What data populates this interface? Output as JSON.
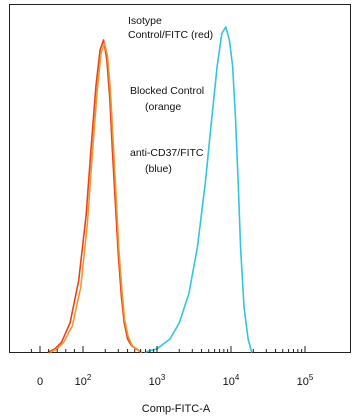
{
  "chart_data": {
    "type": "line",
    "title": "",
    "xlabel": "Comp-FITC-A",
    "ylabel": "",
    "x_scale": "biexponential",
    "x_ticks": [
      {
        "value": 0,
        "base": "0",
        "exp": ""
      },
      {
        "value": 100,
        "base": "10",
        "exp": "2"
      },
      {
        "value": 1000,
        "base": "10",
        "exp": "3"
      },
      {
        "value": 10000,
        "base": "10",
        "exp": "4"
      },
      {
        "value": 100000,
        "base": "10",
        "exp": "5"
      }
    ],
    "xlim": [
      -30,
      120000
    ],
    "ylim": [
      0,
      100
    ],
    "grid": false,
    "legend_placement": "top-center",
    "legend_lines": [
      "Isotype",
      "Control/FITC  (red)",
      "Blocked Control",
      "(orange",
      "anti-CD37/FITC",
      "(blue)"
    ],
    "series": [
      {
        "name": "Isotype Control/FITC (red)",
        "color": "#e8421e",
        "x": [
          20,
          35,
          50,
          70,
          90,
          110,
          130,
          150,
          170,
          190,
          210,
          230,
          250,
          275,
          300,
          330,
          360,
          400,
          450,
          520,
          600
        ],
        "y": [
          0,
          1,
          3,
          9,
          22,
          42,
          64,
          82,
          93,
          96,
          90,
          78,
          62,
          45,
          30,
          17,
          9,
          4,
          2,
          1,
          0
        ]
      },
      {
        "name": "Blocked Control (orange",
        "color": "#f0982e",
        "x": [
          25,
          40,
          55,
          75,
          95,
          115,
          135,
          155,
          175,
          195,
          215,
          235,
          255,
          280,
          305,
          335,
          365,
          405,
          460,
          530,
          610
        ],
        "y": [
          0,
          1,
          3,
          8,
          20,
          40,
          62,
          80,
          92,
          95,
          91,
          80,
          65,
          48,
          32,
          19,
          10,
          5,
          2,
          1,
          0
        ]
      },
      {
        "name": "anti-CD37/FITC (blue)",
        "color": "#33c6d8",
        "x": [
          700,
          1000,
          1500,
          2000,
          2700,
          3500,
          4500,
          5500,
          6500,
          7500,
          8500,
          9500,
          10500,
          11500,
          12500,
          13500,
          15000,
          17000,
          19000
        ],
        "y": [
          0,
          1,
          4,
          9,
          18,
          32,
          52,
          72,
          88,
          98,
          100,
          96,
          88,
          72,
          52,
          32,
          14,
          4,
          0
        ]
      }
    ]
  }
}
